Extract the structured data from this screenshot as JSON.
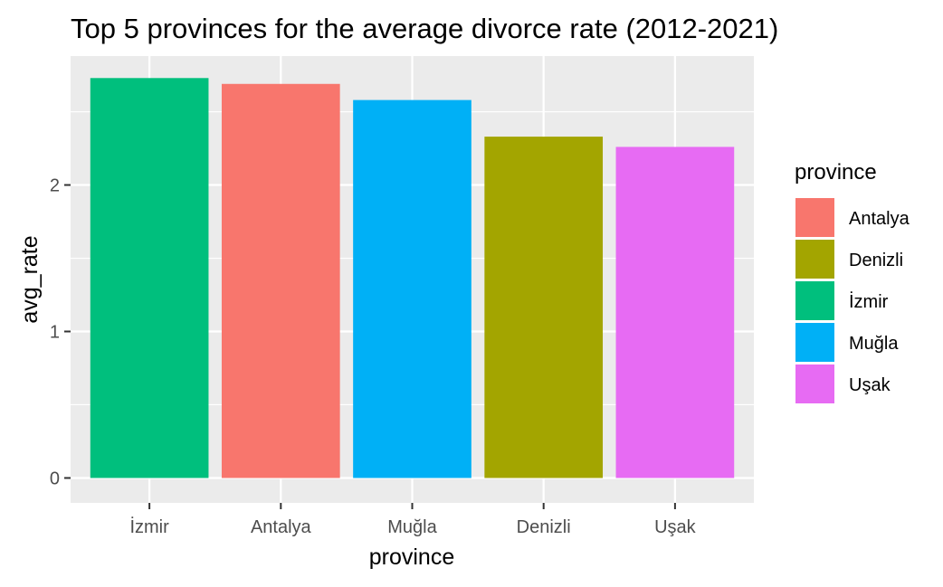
{
  "chart_data": {
    "type": "bar",
    "title": "Top 5 provinces for the average divorce rate (2012-2021)",
    "xlabel": "province",
    "ylabel": "avg_rate",
    "categories": [
      "İzmir",
      "Antalya",
      "Muğla",
      "Denizli",
      "Uşak"
    ],
    "values": [
      2.73,
      2.69,
      2.58,
      2.33,
      2.26
    ],
    "bar_colors": [
      "#00BF7D",
      "#F8766D",
      "#00B0F6",
      "#A3A500",
      "#E76BF3"
    ],
    "ylim": [
      -0.17,
      2.88
    ],
    "y_ticks": [
      0,
      1,
      2
    ],
    "y_minor_ticks": [
      0.5,
      1.5,
      2.5
    ],
    "grid": true,
    "panel_background": "#EBEBEB",
    "legend": {
      "title": "province",
      "placement": "right",
      "entries": [
        {
          "label": "Antalya",
          "color": "#F8766D"
        },
        {
          "label": "Denizli",
          "color": "#A3A500"
        },
        {
          "label": "İzmir",
          "color": "#00BF7D"
        },
        {
          "label": "Muğla",
          "color": "#00B0F6"
        },
        {
          "label": "Uşak",
          "color": "#E76BF3"
        }
      ]
    }
  }
}
